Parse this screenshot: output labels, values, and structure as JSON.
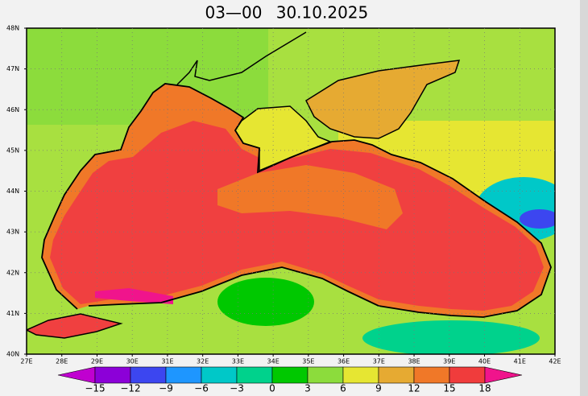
{
  "title": {
    "time": "03—00",
    "date": "30.10.2025"
  },
  "lat_labels": [
    "48N",
    "47N",
    "46N",
    "45N",
    "44N",
    "43N",
    "42N",
    "41N",
    "40N"
  ],
  "lon_labels": [
    "27E",
    "28E",
    "29E",
    "30E",
    "31E",
    "32E",
    "33E",
    "34E",
    "35E",
    "36E",
    "37E",
    "38E",
    "39E",
    "40E",
    "41E",
    "42E"
  ],
  "colorbar": {
    "labels": [
      "−15",
      "−12",
      "−9",
      "−6",
      "−3",
      "0",
      "3",
      "6",
      "9",
      "12",
      "15",
      "18"
    ],
    "colors": [
      "#8c00d8",
      "#3c46f0",
      "#1e96ff",
      "#00c8c8",
      "#00d28c",
      "#00c800",
      "#8cdc3c",
      "#e6e632",
      "#e6aa32",
      "#f07828",
      "#f03c3c"
    ],
    "under_color": "#c000d0",
    "over_color": "#f0148c"
  }
}
